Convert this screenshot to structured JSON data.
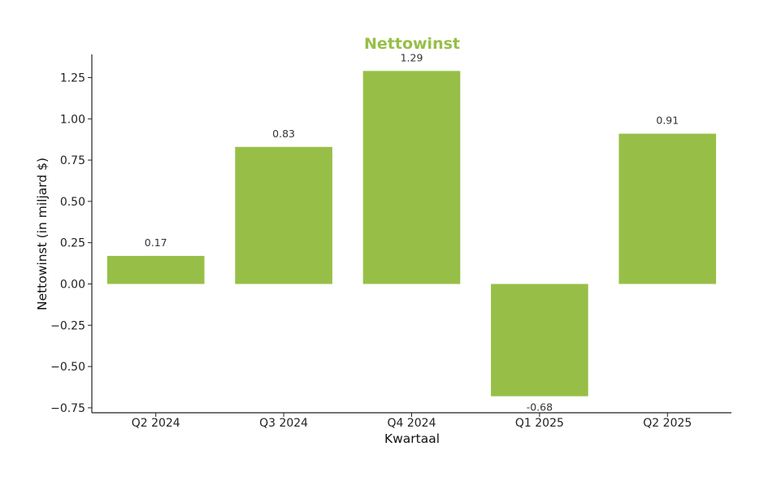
{
  "chart_data": {
    "type": "bar",
    "title": "Nettowinst",
    "xlabel": "Kwartaal",
    "ylabel": "Nettowinst (in miljard $)",
    "categories": [
      "Q2 2024",
      "Q3 2024",
      "Q4 2024",
      "Q1 2025",
      "Q2 2025"
    ],
    "values": [
      0.17,
      0.83,
      1.29,
      -0.68,
      0.91
    ],
    "data_labels": [
      "0.17",
      "0.83",
      "1.29",
      "-0.68",
      "0.91"
    ],
    "ylim": [
      -0.78,
      1.39
    ],
    "yticks": [
      -0.75,
      -0.5,
      -0.25,
      0.0,
      0.25,
      0.5,
      0.75,
      1.0,
      1.25
    ],
    "ytick_labels": [
      "−0.75",
      "−0.50",
      "−0.25",
      "0.00",
      "0.25",
      "0.50",
      "0.75",
      "1.00",
      "1.25"
    ],
    "grid": false,
    "colors": {
      "bar": "#97bf47",
      "title": "#97bf47"
    }
  }
}
